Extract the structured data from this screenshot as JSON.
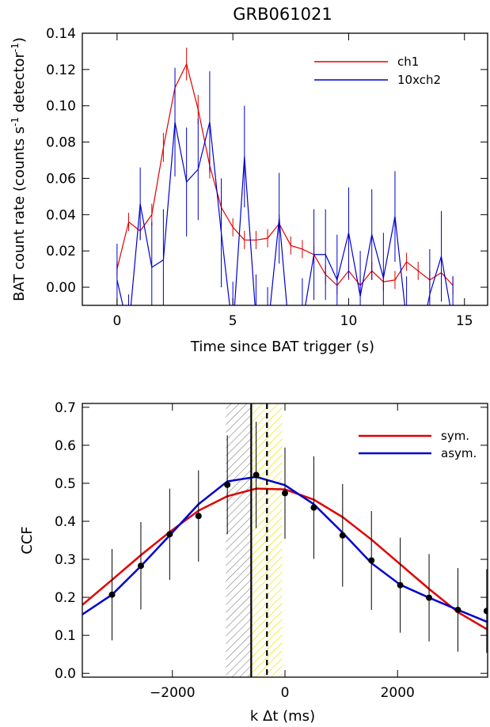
{
  "chart_data": [
    {
      "type": "line",
      "title": "GRB061021",
      "xlabel": "Time since BAT trigger (s)",
      "ylabel": "BAT count rate (counts s",
      "ylabel_sup1": "-1",
      "ylabel_mid": " detector",
      "ylabel_sup2": "-1",
      "ylabel_end": ")",
      "xlim": [
        -1.5,
        16
      ],
      "ylim": [
        -0.01,
        0.14
      ],
      "xticks": [
        0,
        5,
        10,
        15
      ],
      "xtick_labels": [
        "0",
        "5",
        "10",
        "15"
      ],
      "yticks": [
        0.0,
        0.02,
        0.04,
        0.06,
        0.08,
        0.1,
        0.12,
        0.14
      ],
      "ytick_labels": [
        "0.00",
        "0.02",
        "0.04",
        "0.06",
        "0.08",
        "0.10",
        "0.12",
        "0.14"
      ],
      "legend_position": "top-right",
      "series": [
        {
          "name": "ch1",
          "color": "#e00000",
          "x": [
            0,
            0.5,
            1.0,
            1.5,
            2.0,
            2.5,
            3.0,
            3.5,
            4.0,
            4.5,
            5.0,
            5.5,
            6.0,
            6.5,
            7.0,
            7.5,
            8.0,
            8.5,
            9.0,
            9.5,
            10.0,
            10.5,
            11.0,
            11.5,
            12.0,
            12.5,
            13.0,
            13.5,
            14.0,
            14.5
          ],
          "y": [
            0.01,
            0.036,
            0.031,
            0.04,
            0.077,
            0.11,
            0.123,
            0.098,
            0.067,
            0.044,
            0.033,
            0.026,
            0.026,
            0.027,
            0.035,
            0.023,
            0.021,
            0.018,
            0.007,
            0.001,
            0.009,
            0.001,
            0.009,
            0.003,
            0.004,
            0.014,
            0.009,
            0.004,
            0.008,
            0.001
          ],
          "err": [
            0.004,
            0.005,
            0.005,
            0.006,
            0.008,
            0.009,
            0.009,
            0.008,
            0.007,
            0.006,
            0.005,
            0.005,
            0.005,
            0.005,
            0.005,
            0.005,
            0.005,
            0.005,
            0.005,
            0.005,
            0.005,
            0.005,
            0.005,
            0.005,
            0.005,
            0.005,
            0.005,
            0.005,
            0.005,
            0.005
          ]
        },
        {
          "name": "10xch2",
          "color": "#0000d0",
          "x": [
            0,
            0.5,
            1.0,
            1.5,
            2.0,
            2.5,
            3.0,
            3.5,
            4.0,
            4.5,
            5.0,
            5.5,
            6.0,
            6.5,
            7.0,
            7.5,
            8.0,
            8.5,
            9.0,
            9.5,
            10.0,
            10.5,
            11.0,
            11.5,
            12.0,
            12.5,
            13.0,
            13.5,
            14.0,
            14.5
          ],
          "y": [
            0.004,
            -0.024,
            0.046,
            0.011,
            0.015,
            0.091,
            0.058,
            0.065,
            0.091,
            0.03,
            -0.025,
            0.072,
            -0.018,
            -0.025,
            0.038,
            -0.035,
            -0.02,
            0.018,
            0.018,
            0.004,
            0.03,
            -0.005,
            0.029,
            0.005,
            0.039,
            -0.019,
            -0.036,
            -0.004,
            0.017,
            -0.019
          ],
          "err": [
            0.02,
            0.02,
            0.02,
            0.025,
            0.028,
            0.03,
            0.03,
            0.028,
            0.028,
            0.03,
            0.028,
            0.028,
            0.025,
            0.025,
            0.025,
            0.025,
            0.025,
            0.025,
            0.025,
            0.025,
            0.025,
            0.025,
            0.025,
            0.025,
            0.025,
            0.025,
            0.025,
            0.025,
            0.025,
            0.025
          ]
        }
      ]
    },
    {
      "type": "line",
      "title": "",
      "xlabel": "k Δt (ms)",
      "ylabel": "CCF",
      "xlim": [
        -3600,
        3600
      ],
      "ylim": [
        -0.01,
        0.71
      ],
      "xticks": [
        -2000,
        0,
        2000
      ],
      "xtick_labels": [
        "−2000",
        "0",
        "2000"
      ],
      "yticks": [
        0.0,
        0.1,
        0.2,
        0.3,
        0.4,
        0.5,
        0.6,
        0.7
      ],
      "ytick_labels": [
        "0.0",
        "0.1",
        "0.2",
        "0.3",
        "0.4",
        "0.5",
        "0.6",
        "0.7"
      ],
      "legend_position": "top-right",
      "points": {
        "x": [
          -3072,
          -2560,
          -2048,
          -1536,
          -1024,
          -512,
          0,
          512,
          1024,
          1536,
          2048,
          2560,
          3072,
          3584
        ],
        "y": [
          0.207,
          0.283,
          0.366,
          0.414,
          0.496,
          0.522,
          0.474,
          0.436,
          0.363,
          0.297,
          0.232,
          0.199,
          0.167,
          0.164
        ],
        "err": [
          0.12,
          0.115,
          0.12,
          0.12,
          0.13,
          0.14,
          0.12,
          0.135,
          0.135,
          0.13,
          0.125,
          0.115,
          0.11,
          0.11
        ]
      },
      "series": [
        {
          "name": "sym.",
          "color": "#e00000",
          "x": [
            -3600,
            -3072,
            -2560,
            -2048,
            -1536,
            -1024,
            -512,
            0,
            512,
            1024,
            1536,
            2048,
            2560,
            3072,
            3600
          ],
          "y": [
            0.18,
            0.246,
            0.311,
            0.372,
            0.428,
            0.466,
            0.486,
            0.484,
            0.457,
            0.411,
            0.352,
            0.287,
            0.222,
            0.161,
            0.115
          ]
        },
        {
          "name": "asym.",
          "color": "#0000d0",
          "x": [
            -3600,
            -3072,
            -2560,
            -2048,
            -1536,
            -1024,
            -512,
            0,
            512,
            1024,
            1536,
            2048,
            2560,
            3072,
            3600
          ],
          "y": [
            0.155,
            0.207,
            0.282,
            0.363,
            0.445,
            0.505,
            0.517,
            0.495,
            0.445,
            0.37,
            0.29,
            0.233,
            0.199,
            0.167,
            0.135
          ]
        }
      ],
      "vlines": {
        "solid": -600,
        "dashed": -320
      },
      "bands": [
        {
          "from": -1050,
          "to": -600,
          "color": "#808080"
        },
        {
          "from": -600,
          "to": -50,
          "color": "#e8e800"
        }
      ]
    }
  ]
}
